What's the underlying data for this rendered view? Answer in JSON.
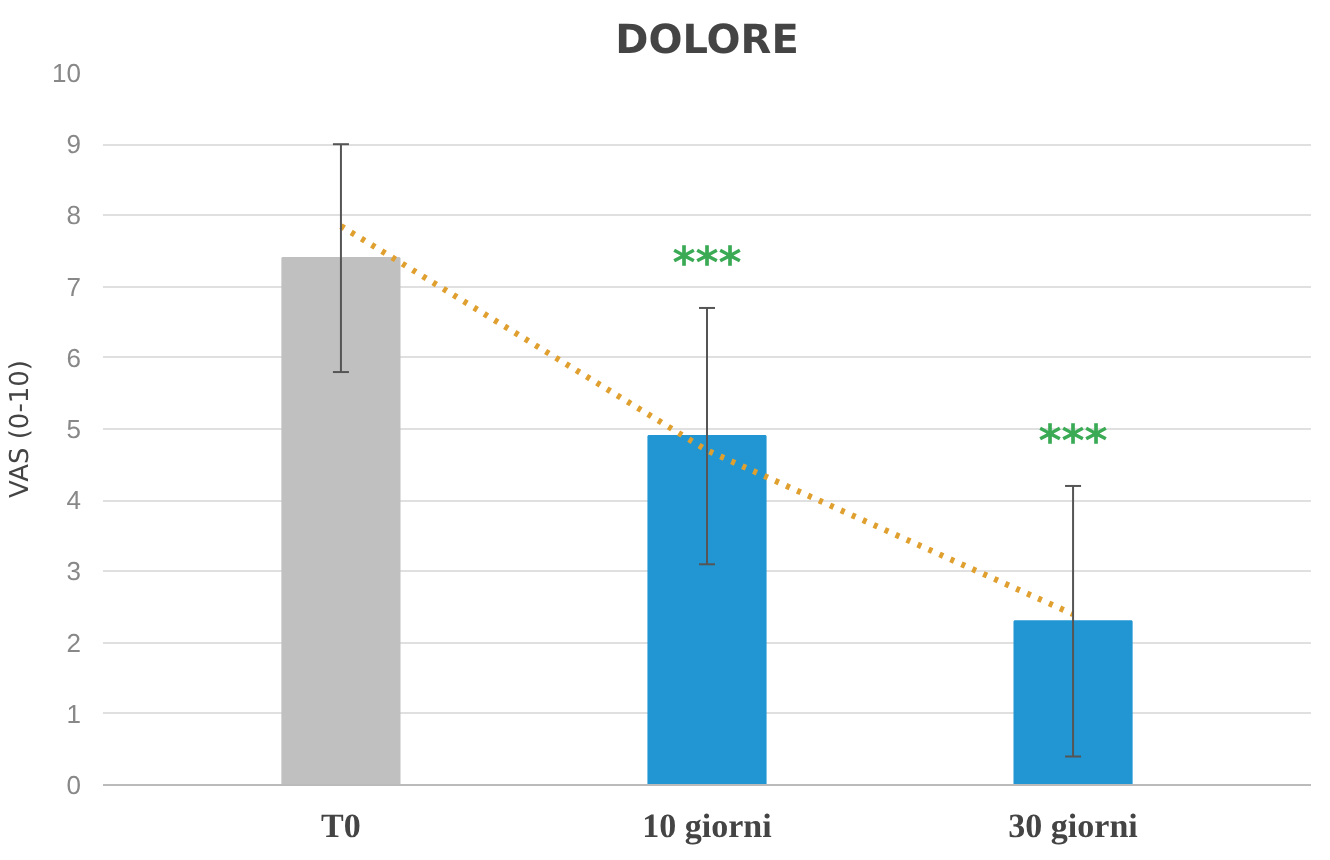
{
  "chart_data": {
    "type": "bar",
    "title": "DOLORE",
    "ylabel": "VAS (0-10)",
    "categories": [
      "T0",
      "10 giorni",
      "30 giorni"
    ],
    "series": [
      {
        "colors": [
          "#c0c0c0",
          "#2196d3",
          "#2196d3"
        ],
        "values": [
          7.4,
          4.9,
          2.3
        ],
        "errors": [
          [
            5.8,
            9.0
          ],
          [
            3.1,
            6.7
          ],
          [
            0.4,
            4.2
          ]
        ]
      },
      {
        "type": "line",
        "color": "#e0a030",
        "line_style": "dotted",
        "values": [
          7.85,
          4.7,
          2.4
        ]
      }
    ],
    "annotations": [
      "***",
      "***"
    ],
    "ylim": [
      0,
      10
    ],
    "yticks": [
      0,
      1,
      2,
      3,
      4,
      5,
      6,
      7,
      8,
      9,
      10
    ],
    "grid": "y"
  }
}
